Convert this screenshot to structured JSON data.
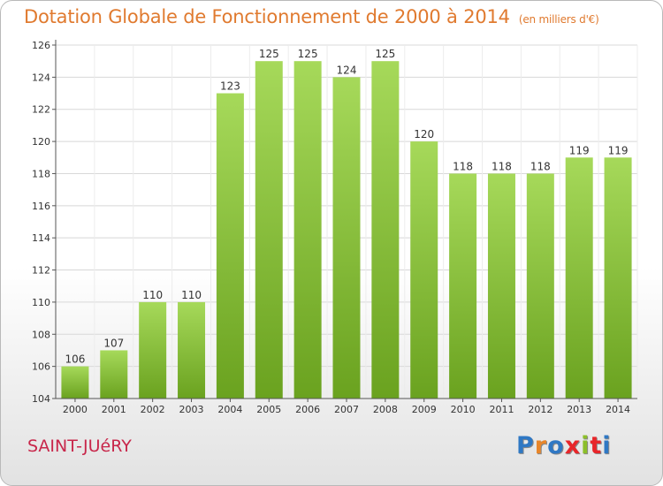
{
  "title": "Dotation Globale de Fonctionnement de 2000 à 2014",
  "unit": "(en milliers d'€)",
  "commune": "SAINT-JUéRY",
  "logo": [
    "P",
    "r",
    "o",
    "x",
    "i",
    "t",
    "i"
  ],
  "logo_colors": [
    "#2f78c4",
    "#e8862a",
    "#2f78c4",
    "#e8262a",
    "#8cbf2a",
    "#e8262a",
    "#2f78c4"
  ],
  "colors": {
    "bar_light": "#a6d95a",
    "bar_dark": "#6aa21f",
    "grid": "#d8d8d8"
  },
  "chart_data": {
    "type": "bar",
    "categories": [
      "2000",
      "2001",
      "2002",
      "2003",
      "2004",
      "2005",
      "2006",
      "2007",
      "2008",
      "2009",
      "2010",
      "2011",
      "2012",
      "2013",
      "2014"
    ],
    "values": [
      106,
      107,
      110,
      110,
      123,
      125,
      125,
      124,
      125,
      120,
      118,
      118,
      118,
      119,
      119
    ],
    "ylim": [
      104,
      126
    ],
    "yticks": [
      104,
      106,
      108,
      110,
      112,
      114,
      116,
      118,
      120,
      122,
      124,
      126
    ],
    "grid": true,
    "title": "Dotation Globale de Fonctionnement de 2000 à 2014",
    "xlabel": "",
    "ylabel": ""
  }
}
